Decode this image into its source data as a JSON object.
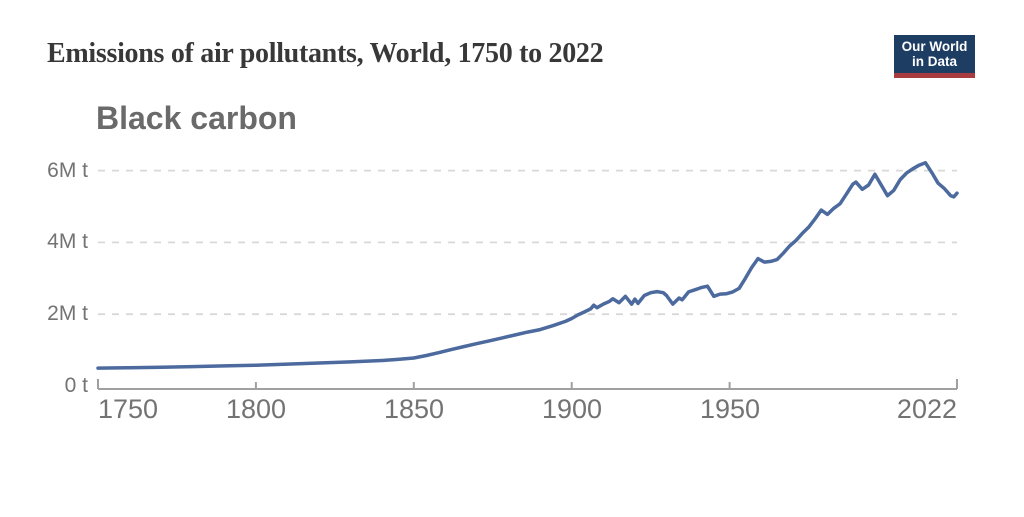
{
  "header": {
    "title": "Emissions of air pollutants, World, 1750 to 2022"
  },
  "logo": {
    "line1": "Our World",
    "line2": "in Data",
    "bg_color": "#1d3d63",
    "stripe_color": "#a93c3e",
    "text_color": "#ffffff"
  },
  "chart": {
    "subtitle": "Black carbon",
    "y_ticks": [
      {
        "label": "6M t",
        "value": 6
      },
      {
        "label": "4M t",
        "value": 4
      },
      {
        "label": "2M t",
        "value": 2
      },
      {
        "label": "0 t",
        "value": 0
      }
    ],
    "x_ticks": [
      {
        "label": "1750",
        "year": 1750
      },
      {
        "label": "1800",
        "year": 1800
      },
      {
        "label": "1850",
        "year": 1850
      },
      {
        "label": "1900",
        "year": 1900
      },
      {
        "label": "1950",
        "year": 1950
      },
      {
        "label": "2022",
        "year": 2022
      }
    ]
  },
  "chart_data": {
    "type": "line",
    "title": "Emissions of air pollutants, World, 1750 to 2022",
    "series": [
      {
        "name": "Black carbon",
        "x": [
          1750,
          1760,
          1770,
          1780,
          1790,
          1800,
          1810,
          1820,
          1830,
          1840,
          1845,
          1850,
          1854,
          1858,
          1862,
          1866,
          1870,
          1874,
          1878,
          1882,
          1886,
          1890,
          1894,
          1898,
          1900,
          1902,
          1904,
          1906,
          1907,
          1908,
          1910,
          1912,
          1913,
          1915,
          1917,
          1919,
          1920,
          1921,
          1923,
          1925,
          1927,
          1929,
          1930,
          1932,
          1934,
          1935,
          1937,
          1939,
          1941,
          1943,
          1945,
          1947,
          1949,
          1951,
          1953,
          1955,
          1957,
          1959,
          1961,
          1963,
          1965,
          1967,
          1969,
          1971,
          1973,
          1975,
          1977,
          1979,
          1981,
          1983,
          1985,
          1987,
          1989,
          1990,
          1992,
          1994,
          1996,
          1998,
          2000,
          2002,
          2004,
          2006,
          2008,
          2010,
          2012,
          2014,
          2016,
          2018,
          2020,
          2021,
          2022
        ],
        "y": [
          0.5,
          0.51,
          0.52,
          0.54,
          0.56,
          0.58,
          0.61,
          0.64,
          0.67,
          0.71,
          0.74,
          0.78,
          0.85,
          0.93,
          1.02,
          1.1,
          1.18,
          1.26,
          1.34,
          1.42,
          1.5,
          1.57,
          1.68,
          1.8,
          1.88,
          1.98,
          2.06,
          2.15,
          2.25,
          2.18,
          2.28,
          2.36,
          2.43,
          2.32,
          2.5,
          2.28,
          2.42,
          2.3,
          2.52,
          2.6,
          2.63,
          2.6,
          2.52,
          2.28,
          2.45,
          2.4,
          2.62,
          2.68,
          2.74,
          2.78,
          2.5,
          2.56,
          2.57,
          2.62,
          2.72,
          3.0,
          3.3,
          3.55,
          3.45,
          3.47,
          3.52,
          3.7,
          3.9,
          4.05,
          4.25,
          4.42,
          4.65,
          4.9,
          4.78,
          4.95,
          5.08,
          5.35,
          5.62,
          5.68,
          5.48,
          5.6,
          5.9,
          5.6,
          5.3,
          5.45,
          5.75,
          5.93,
          6.05,
          6.15,
          6.22,
          5.95,
          5.65,
          5.5,
          5.3,
          5.27,
          5.37
        ]
      }
    ],
    "xlabel": "",
    "ylabel": "",
    "y_unit": "million tonnes (M t)",
    "xlim": [
      1750,
      2022
    ],
    "ylim": [
      0,
      6.6
    ],
    "grid": "horizontal dashed",
    "legend": "none",
    "line_color": "#4c6a9e",
    "grid_color": "#d8d8d8",
    "axis_color": "#a0a0a0",
    "tick_label_color": "#737373"
  }
}
